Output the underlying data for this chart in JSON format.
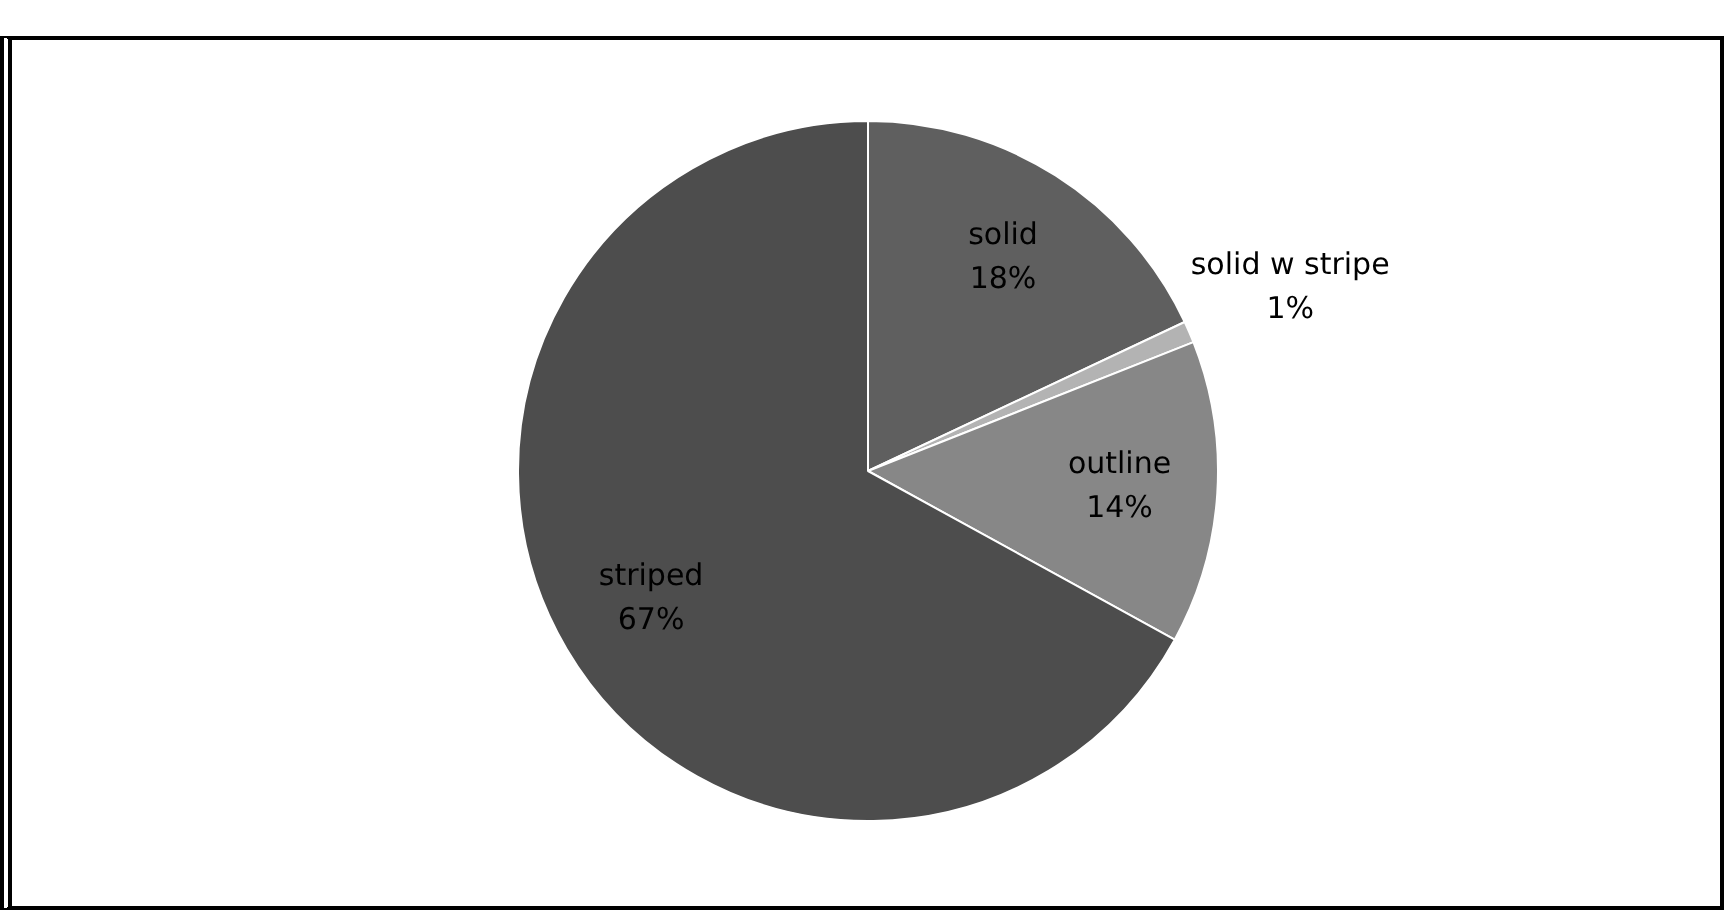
{
  "chart_data": {
    "type": "pie",
    "categories": [
      "solid",
      "solid w stripe",
      "outline",
      "striped"
    ],
    "values": [
      18,
      1,
      14,
      67
    ],
    "colors": [
      "#5f5f5f",
      "#b3b3b3",
      "#878787",
      "#4d4d4d"
    ],
    "value_labels": [
      "18%",
      "1%",
      "14%",
      "67%"
    ],
    "legend": false
  }
}
